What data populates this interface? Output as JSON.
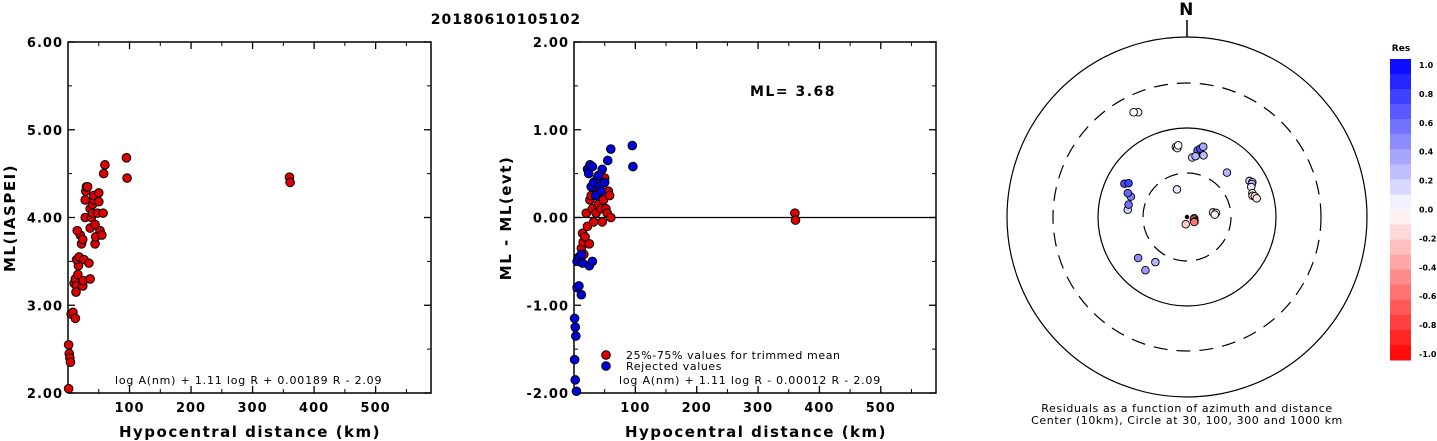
{
  "title": "20180610105102",
  "chart_data": [
    {
      "type": "scatter",
      "xlabel": "Hypocentral distance (km)",
      "ylabel": "ML(IASPEI)",
      "xlim": [
        0,
        590
      ],
      "ylim": [
        2.0,
        6.0
      ],
      "xticks": [
        "100",
        "200",
        "300",
        "400",
        "500"
      ],
      "yticks": [
        "2.00",
        "3.00",
        "4.00",
        "5.00",
        "6.00"
      ],
      "formula": "log A(nm) + 1.11 log R + 0.00189 R - 2.09",
      "series": [
        {
          "color": "#dd0000",
          "points": [
            [
              1,
              2.55
            ],
            [
              2,
              2.45
            ],
            [
              3,
              2.4
            ],
            [
              4,
              2.35
            ],
            [
              1,
              2.05
            ],
            [
              5,
              2.9
            ],
            [
              8,
              2.92
            ],
            [
              12,
              2.85
            ],
            [
              10,
              3.25
            ],
            [
              12,
              3.3
            ],
            [
              14,
              3.22
            ],
            [
              13,
              3.15
            ],
            [
              16,
              3.35
            ],
            [
              17,
              3.45
            ],
            [
              14,
              3.52
            ],
            [
              18,
              3.55
            ],
            [
              20,
              3.8
            ],
            [
              22,
              3.7
            ],
            [
              24,
              3.75
            ],
            [
              15,
              3.85
            ],
            [
              24,
              3.22
            ],
            [
              25,
              3.28
            ],
            [
              26,
              3.52
            ],
            [
              28,
              4.0
            ],
            [
              28,
              4.2
            ],
            [
              29,
              4.3
            ],
            [
              30,
              4.35
            ],
            [
              32,
              4.35
            ],
            [
              34,
              3.48
            ],
            [
              36,
              3.3
            ],
            [
              36,
              3.88
            ],
            [
              36,
              4.1
            ],
            [
              38,
              4.0
            ],
            [
              40,
              4.05
            ],
            [
              40,
              4.15
            ],
            [
              42,
              4.2
            ],
            [
              42,
              4.25
            ],
            [
              44,
              3.92
            ],
            [
              44,
              3.7
            ],
            [
              45,
              3.78
            ],
            [
              48,
              4.05
            ],
            [
              50,
              4.28
            ],
            [
              50,
              4.18
            ],
            [
              52,
              3.85
            ],
            [
              55,
              3.8
            ],
            [
              57,
              4.05
            ],
            [
              58,
              4.5
            ],
            [
              60,
              4.6
            ],
            [
              95,
              4.68
            ],
            [
              96,
              4.45
            ],
            [
              360,
              4.46
            ],
            [
              361,
              4.4
            ]
          ]
        }
      ]
    },
    {
      "type": "scatter",
      "xlabel": "Hypocentral distance (km)",
      "ylabel": "ML - ML(evt)",
      "xlim": [
        0,
        590
      ],
      "ylim": [
        -2.0,
        2.0
      ],
      "xticks": [
        "100",
        "200",
        "300",
        "400",
        "500"
      ],
      "yticks": [
        "-2.00",
        "-1.00",
        "0.00",
        "1.00",
        "2.00"
      ],
      "reference_line_y": 0.0,
      "annotation": "ML= 3.68",
      "formula": "log A(nm) + 1.11 log R - 0.00012 R - 2.09",
      "legend": [
        "25%-75% values for trimmed mean",
        "Rejected values"
      ],
      "series": [
        {
          "name": "25%-75% values for trimmed mean",
          "color": "#dd0000",
          "points": [
            [
              10,
              -0.45
            ],
            [
              12,
              -0.35
            ],
            [
              14,
              -0.18
            ],
            [
              15,
              -0.28
            ],
            [
              16,
              -0.42
            ],
            [
              18,
              -0.22
            ],
            [
              20,
              0.05
            ],
            [
              22,
              -0.1
            ],
            [
              25,
              -0.3
            ],
            [
              26,
              0.2
            ],
            [
              28,
              0.25
            ],
            [
              30,
              0.1
            ],
            [
              32,
              -0.05
            ],
            [
              34,
              0.35
            ],
            [
              36,
              0.05
            ],
            [
              38,
              0.4
            ],
            [
              40,
              0.3
            ],
            [
              40,
              0.15
            ],
            [
              42,
              0.25
            ],
            [
              44,
              0.1
            ],
            [
              46,
              -0.05
            ],
            [
              48,
              0.2
            ],
            [
              50,
              0.45
            ],
            [
              52,
              0.1
            ],
            [
              54,
              0.05
            ],
            [
              56,
              0.3
            ],
            [
              58,
              0.25
            ],
            [
              60,
              0.0
            ],
            [
              360,
              0.05
            ],
            [
              361,
              -0.03
            ]
          ]
        },
        {
          "name": "Rejected values",
          "color": "#0000dd",
          "points": [
            [
              1,
              -1.15
            ],
            [
              2,
              -1.25
            ],
            [
              3,
              -1.35
            ],
            [
              1,
              -1.62
            ],
            [
              2,
              -1.85
            ],
            [
              4,
              -1.98
            ],
            [
              5,
              -0.8
            ],
            [
              8,
              -0.78
            ],
            [
              12,
              -0.88
            ],
            [
              5,
              -0.5
            ],
            [
              8,
              -0.45
            ],
            [
              12,
              -0.42
            ],
            [
              14,
              -0.52
            ],
            [
              25,
              -0.55
            ],
            [
              30,
              -0.5
            ],
            [
              22,
              0.55
            ],
            [
              24,
              0.5
            ],
            [
              26,
              0.6
            ],
            [
              28,
              0.35
            ],
            [
              30,
              0.58
            ],
            [
              32,
              0.4
            ],
            [
              35,
              0.25
            ],
            [
              38,
              0.45
            ],
            [
              40,
              0.48
            ],
            [
              42,
              0.35
            ],
            [
              44,
              0.3
            ],
            [
              46,
              0.55
            ],
            [
              50,
              0.4
            ],
            [
              55,
              0.65
            ],
            [
              60,
              0.78
            ],
            [
              95,
              0.82
            ],
            [
              96,
              0.58
            ]
          ]
        }
      ]
    }
  ],
  "polar": {
    "north_label": "N",
    "caption_line1": "Residuals as a function of azimuth and distance",
    "caption_line2": "Center (10km), Circle at 30, 100, 300 and 1000 km",
    "colorbar_title": "Res",
    "colorbar_ticks": [
      "1.0",
      "0.8",
      "0.6",
      "0.4",
      "0.2",
      "0.0",
      "-0.2",
      "-0.4",
      "-0.6",
      "-0.8",
      "-1.0"
    ],
    "stations": [
      {
        "az": 351,
        "dist": 60,
        "res": 0.05
      },
      {
        "az": 352,
        "dist": 58,
        "res": 0.05
      },
      {
        "az": 353,
        "dist": 62,
        "res": 0.0
      },
      {
        "az": 335,
        "dist": 190,
        "res": 0.05
      },
      {
        "az": 333,
        "dist": 200,
        "res": 0.0
      },
      {
        "az": 9,
        "dist": 55,
        "res": 0.6
      },
      {
        "az": 11,
        "dist": 58,
        "res": 0.7
      },
      {
        "az": 5,
        "dist": 45,
        "res": 0.2
      },
      {
        "az": 8,
        "dist": 47,
        "res": 0.3
      },
      {
        "az": 13,
        "dist": 62,
        "res": 0.35
      },
      {
        "az": 15,
        "dist": 50,
        "res": 0.25
      },
      {
        "az": 42,
        "dist": 45,
        "res": 0.3
      },
      {
        "az": 60,
        "dist": 62,
        "res": 0.2
      },
      {
        "az": 62,
        "dist": 65,
        "res": 0.2
      },
      {
        "az": 63,
        "dist": 63,
        "res": 0.25
      },
      {
        "az": 65,
        "dist": 60,
        "res": 0.1
      },
      {
        "az": 70,
        "dist": 58,
        "res": 0.0
      },
      {
        "az": 72,
        "dist": 57,
        "res": -0.2
      },
      {
        "az": 73,
        "dist": 60,
        "res": -0.15
      },
      {
        "az": 75,
        "dist": 62,
        "res": -0.1
      },
      {
        "az": 80,
        "dist": 18,
        "res": -0.1
      },
      {
        "az": 82,
        "dist": 20,
        "res": 0.0
      },
      {
        "az": 85,
        "dist": 19,
        "res": -0.05
      },
      {
        "az": 100,
        "dist": 5,
        "res": -0.4
      },
      {
        "az": 110,
        "dist": 5,
        "res": -0.5
      },
      {
        "az": 120,
        "dist": 6,
        "res": -0.6
      },
      {
        "az": 125,
        "dist": 6,
        "res": -0.55
      },
      {
        "az": 190,
        "dist": 5,
        "res": -0.2
      },
      {
        "az": 215,
        "dist": 40,
        "res": 0.3
      },
      {
        "az": 218,
        "dist": 55,
        "res": 0.4
      },
      {
        "az": 230,
        "dist": 50,
        "res": 0.45
      },
      {
        "az": 277,
        "dist": 45,
        "res": 0.2
      },
      {
        "az": 282,
        "dist": 45,
        "res": 0.55
      },
      {
        "az": 290,
        "dist": 45,
        "res": 0.5
      },
      {
        "az": 292,
        "dist": 50,
        "res": 0.6
      },
      {
        "az": 298,
        "dist": 60,
        "res": 0.7
      },
      {
        "az": 300,
        "dist": 55,
        "res": 0.75
      },
      {
        "az": 340,
        "dist": 20,
        "res": 0.1
      }
    ]
  }
}
